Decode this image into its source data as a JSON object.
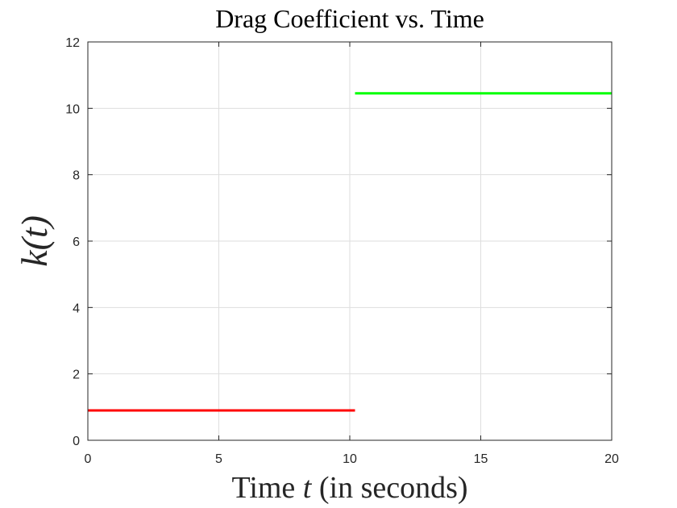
{
  "chart_data": {
    "type": "line",
    "title": "Drag Coefficient vs. Time",
    "xlabel": {
      "prefix": "Time ",
      "variable": "t",
      "suffix": " (in seconds)"
    },
    "ylabel": "k(t)",
    "xlim": [
      0,
      20
    ],
    "ylim": [
      0,
      12
    ],
    "xticks": [
      0,
      5,
      10,
      15,
      20
    ],
    "yticks": [
      0,
      2,
      4,
      6,
      8,
      10,
      12
    ],
    "grid": true,
    "series": [
      {
        "color": "#ff0000",
        "x": [
          0,
          10.2
        ],
        "y": [
          0.9,
          0.9
        ]
      },
      {
        "color": "#00ff00",
        "x": [
          10.2,
          20
        ],
        "y": [
          10.45,
          10.45
        ]
      }
    ]
  }
}
